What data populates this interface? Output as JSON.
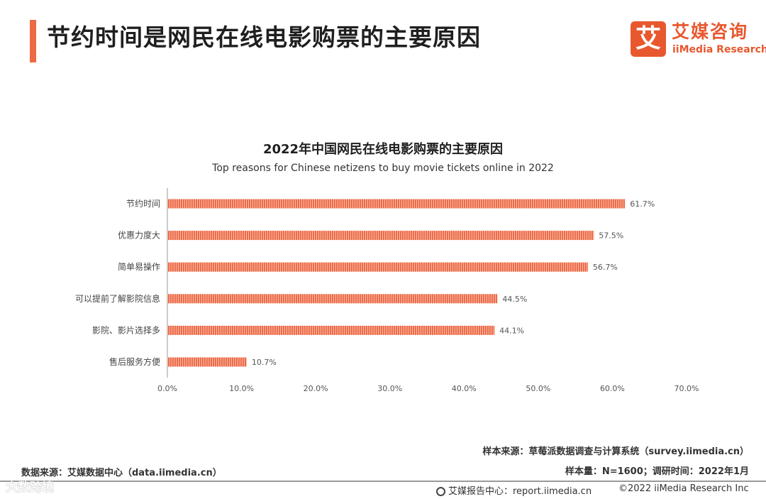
{
  "header": {
    "title": "节约时间是网民在线电影购票的主要原因"
  },
  "logo": {
    "mark": "艾",
    "name_cn": "艾媒咨询",
    "name_en": "iiMedia Research"
  },
  "chart_data": {
    "type": "bar",
    "orientation": "horizontal",
    "title": "2022年中国网民在线电影购票的主要原因",
    "subtitle": "Top reasons for Chinese netizens to buy movie tickets online in 2022",
    "categories": [
      "节约时间",
      "优惠力度大",
      "简单易操作",
      "可以提前了解影院信息",
      "影院、影片选择多",
      "售后服务方便"
    ],
    "values": [
      61.7,
      57.5,
      56.7,
      44.5,
      44.1,
      10.7
    ],
    "value_labels": [
      "61.7%",
      "57.5%",
      "56.7%",
      "44.5%",
      "44.1%",
      "10.7%"
    ],
    "xlim": [
      0,
      70
    ],
    "x_ticks": [
      "0.0%",
      "10.0%",
      "20.0%",
      "30.0%",
      "40.0%",
      "50.0%",
      "60.0%",
      "70.0%"
    ],
    "grid": false,
    "bar_color": "#ee6a45"
  },
  "footer": {
    "data_source": "数据来源：艾媒数据中心（data.iimedia.cn）",
    "sample_source": "样本来源：草莓派数据调查与计算系统（survey.iimedia.cn）",
    "sample_size": "样本量：N=1600；调研时间：2022年1月",
    "report_center": "艾媒报告中心：report.iimedia.cn",
    "copyright": "©2022  iiMedia Research  Inc"
  },
  "watermark": "大数跨境"
}
